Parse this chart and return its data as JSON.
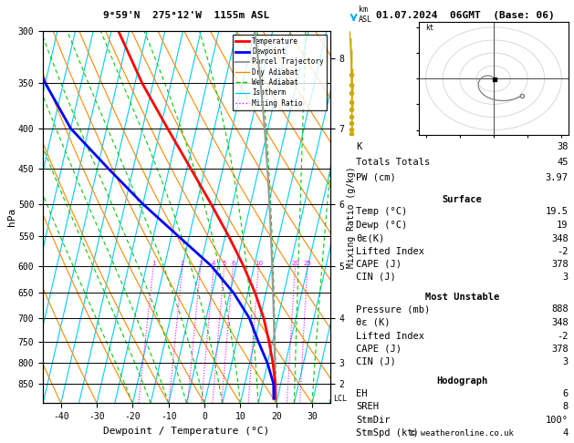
{
  "title_left": "9°59'N  275°12'W  1155m ASL",
  "title_right": "01.07.2024  06GMT  (Base: 06)",
  "xlabel": "Dewpoint / Temperature (°C)",
  "ylabel_left": "hPa",
  "ylabel_right": "Mixing Ratio (g/kg)",
  "km_label": "km\nASL",
  "pressure_levels": [
    300,
    350,
    400,
    450,
    500,
    550,
    600,
    650,
    700,
    750,
    800,
    850
  ],
  "temp_range": [
    -45,
    35
  ],
  "temp_ticks": [
    -40,
    -30,
    -20,
    -10,
    0,
    10,
    20,
    30
  ],
  "bg_color": "#ffffff",
  "isotherm_color": "#00ccff",
  "dry_adiabat_color": "#ff8800",
  "wet_adiabat_color": "#00cc00",
  "mixing_ratio_color": "#ff00ff",
  "temp_color": "#ff0000",
  "dewp_color": "#0000ff",
  "parcel_color": "#999999",
  "wind_color": "#ccaa00",
  "legend_items": [
    {
      "label": "Temperature",
      "color": "#ff0000",
      "lw": 2,
      "ls": "-"
    },
    {
      "label": "Dewpoint",
      "color": "#0000ff",
      "lw": 2,
      "ls": "-"
    },
    {
      "label": "Parcel Trajectory",
      "color": "#999999",
      "lw": 1.5,
      "ls": "-"
    },
    {
      "label": "Dry Adiabat",
      "color": "#ff8800",
      "lw": 1,
      "ls": "-"
    },
    {
      "label": "Wet Adiabat",
      "color": "#00cc00",
      "lw": 1,
      "ls": "--"
    },
    {
      "label": "Isotherm",
      "color": "#00ccff",
      "lw": 1,
      "ls": "-"
    },
    {
      "label": "Mixing Ratio",
      "color": "#ff00ff",
      "lw": 1,
      "ls": ":"
    }
  ],
  "sounding_p": [
    888,
    850,
    800,
    750,
    700,
    650,
    600,
    550,
    500,
    450,
    400,
    350,
    300
  ],
  "sounding_T": [
    19.5,
    18.5,
    16.5,
    14.0,
    11.0,
    7.0,
    2.0,
    -4.0,
    -11.0,
    -19.0,
    -28.0,
    -38.0,
    -48.0
  ],
  "sounding_Td": [
    19.0,
    18.0,
    15.0,
    11.0,
    7.0,
    1.0,
    -7.0,
    -18.0,
    -30.0,
    -42.0,
    -55.0,
    -65.0,
    -75.0
  ],
  "parcel_T0": 19.5,
  "parcel_p0": 888,
  "footnote": "© weatheronline.co.uk",
  "K_index": 38,
  "totals": 45,
  "PW": "3.97",
  "sfc_temp": "19.5",
  "sfc_dewp": "19",
  "sfc_theta_e": "348",
  "sfc_LI": "-2",
  "sfc_CAPE": "378",
  "sfc_CIN": "3",
  "mu_press": "888",
  "mu_theta_e": "348",
  "mu_LI": "-2",
  "mu_CAPE": "378",
  "mu_CIN": "3",
  "EH": "6",
  "SREH": "8",
  "StmDir": "100°",
  "StmSpd": "4",
  "wind_p": [
    888,
    850,
    800,
    750,
    700,
    650,
    600,
    550,
    500
  ],
  "wind_dir": [
    100,
    105,
    110,
    120,
    135,
    150,
    170,
    190,
    210
  ],
  "wind_spd": [
    4,
    5,
    6,
    8,
    10,
    12,
    14,
    15,
    16
  ]
}
